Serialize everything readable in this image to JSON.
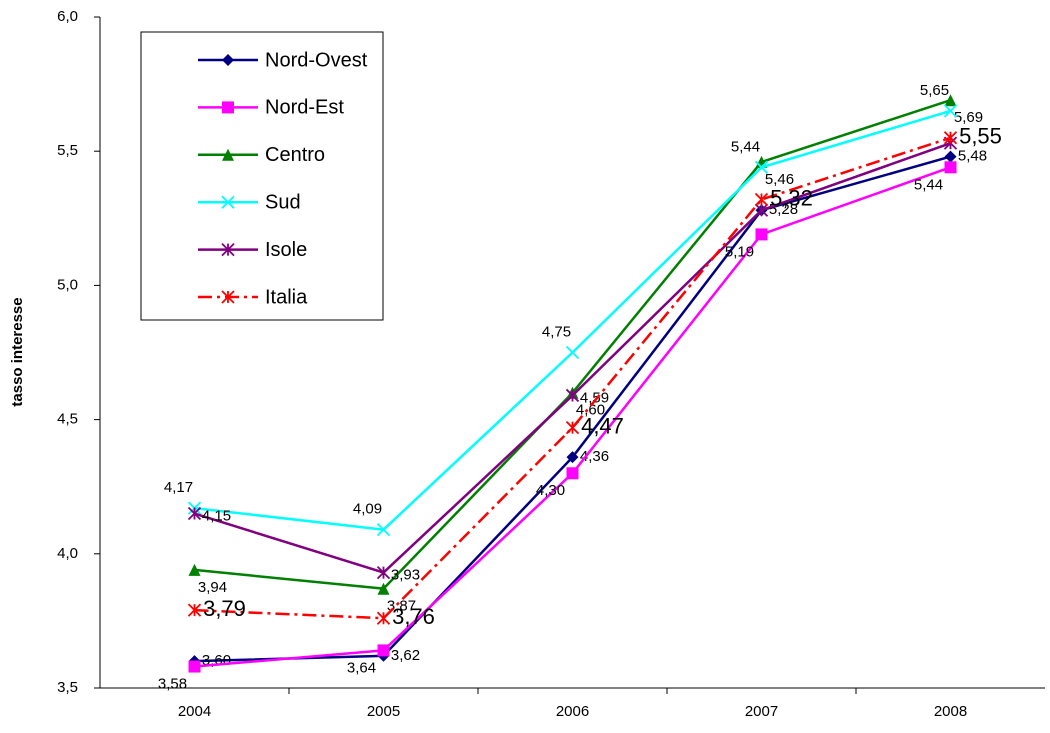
{
  "chart_data": {
    "type": "line",
    "y_label": "tasso interesse",
    "categories": [
      "2004",
      "2005",
      "2006",
      "2007",
      "2008"
    ],
    "ylim": [
      3.5,
      6.0
    ],
    "yticks": [
      {
        "value": 3.5,
        "label": "3,5"
      },
      {
        "value": 4.0,
        "label": "4,0"
      },
      {
        "value": 4.5,
        "label": "4,5"
      },
      {
        "value": 5.0,
        "label": "5,0"
      },
      {
        "value": 5.5,
        "label": "5,5"
      },
      {
        "value": 6.0,
        "label": "6,0"
      }
    ],
    "legend": "upper left",
    "series": [
      {
        "name": "Nord-Ovest",
        "color": "#000080",
        "marker": "diamond",
        "values": [
          3.6,
          3.62,
          4.36,
          5.28,
          5.48
        ],
        "value_labels": [
          "3,60",
          "3,62",
          "4,36",
          "5,28",
          "5,48"
        ]
      },
      {
        "name": "Nord-Est",
        "color": "#ff00ff",
        "marker": "square",
        "values": [
          3.58,
          3.64,
          4.3,
          5.19,
          5.44
        ],
        "value_labels": [
          "3,58",
          "3,64",
          "4,30",
          "5,19",
          "5,44"
        ]
      },
      {
        "name": "Centro",
        "color": "#008000",
        "marker": "triangle",
        "values": [
          3.94,
          3.87,
          4.6,
          5.46,
          5.69
        ],
        "value_labels": [
          "3,94",
          "3,87",
          "4,60",
          "5,46",
          "5,69"
        ]
      },
      {
        "name": "Sud",
        "color": "#00ffff",
        "marker": "x",
        "values": [
          4.17,
          4.09,
          4.75,
          5.44,
          5.65
        ],
        "value_labels": [
          "4,17",
          "4,09",
          "4,75",
          "5,44",
          "5,65"
        ]
      },
      {
        "name": "Isole",
        "color": "#800080",
        "marker": "star",
        "values": [
          4.15,
          3.93,
          4.59,
          5.28,
          5.53
        ],
        "value_labels": [
          "4,15",
          "3,93",
          "4,59",
          null,
          null
        ]
      },
      {
        "name": "Italia",
        "color": "#ff0000",
        "marker": "star",
        "dash": true,
        "values": [
          3.79,
          3.76,
          4.47,
          5.32,
          5.55
        ],
        "value_labels": [
          "3,79",
          "3,76",
          "4,47",
          "5,32",
          "5,55"
        ]
      }
    ]
  }
}
